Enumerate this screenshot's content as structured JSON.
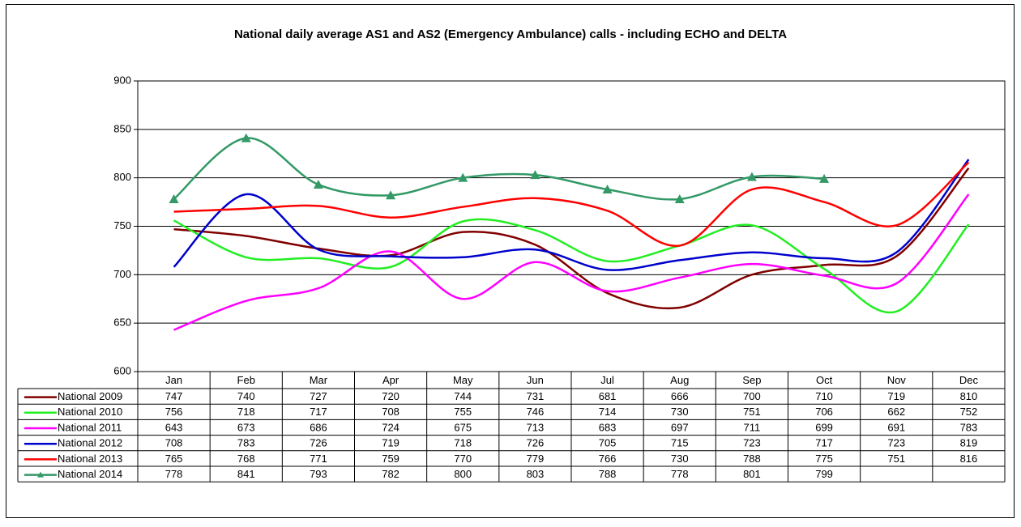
{
  "chart_data": {
    "type": "line",
    "title": "National daily average AS1 and AS2 (Emergency Ambulance) calls - including ECHO and DELTA",
    "categories": [
      "Jan",
      "Feb",
      "Mar",
      "Apr",
      "May",
      "Jun",
      "Jul",
      "Aug",
      "Sep",
      "Oct",
      "Nov",
      "Dec"
    ],
    "series": [
      {
        "name": "National 2009",
        "color": "#800000",
        "values": [
          747,
          740,
          727,
          720,
          744,
          731,
          681,
          666,
          700,
          710,
          719,
          810
        ]
      },
      {
        "name": "National 2010",
        "color": "#22ee22",
        "values": [
          756,
          718,
          717,
          708,
          755,
          746,
          714,
          730,
          751,
          706,
          662,
          752
        ]
      },
      {
        "name": "National 2011",
        "color": "#ff00ff",
        "values": [
          643,
          673,
          686,
          724,
          675,
          713,
          683,
          697,
          711,
          699,
          691,
          783
        ]
      },
      {
        "name": "National 2012",
        "color": "#0000cc",
        "values": [
          708,
          783,
          726,
          719,
          718,
          726,
          705,
          715,
          723,
          717,
          723,
          819
        ]
      },
      {
        "name": "National 2013",
        "color": "#ff0000",
        "values": [
          765,
          768,
          771,
          759,
          770,
          779,
          766,
          730,
          788,
          775,
          751,
          816
        ]
      },
      {
        "name": "National 2014",
        "color": "#339966",
        "marker": "triangle",
        "values": [
          778,
          841,
          793,
          782,
          800,
          803,
          788,
          778,
          801,
          799,
          null,
          null
        ]
      }
    ],
    "ylim": [
      600,
      900
    ],
    "yticks": [
      600,
      650,
      700,
      750,
      800,
      850,
      900
    ],
    "grid": true,
    "smooth": true
  }
}
